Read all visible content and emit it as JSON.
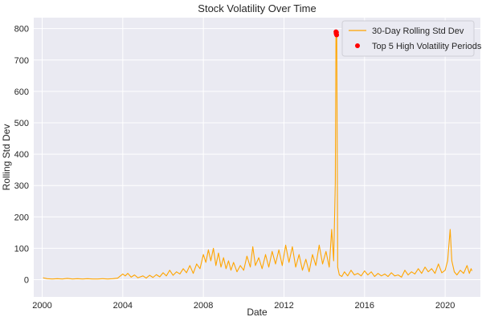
{
  "chart_data": {
    "type": "line",
    "title": "Stock Volatility Over Time",
    "xlabel": "Date",
    "ylabel": "Rolling Std Dev",
    "xlim": [
      "1999-08-01",
      "2021-10-01"
    ],
    "ylim": [
      -55,
      835
    ],
    "x_ticks": [
      {
        "date": "2000-01-01",
        "label": "2000"
      },
      {
        "date": "2004-01-01",
        "label": "2004"
      },
      {
        "date": "2008-01-01",
        "label": "2008"
      },
      {
        "date": "2012-01-01",
        "label": "2012"
      },
      {
        "date": "2016-01-01",
        "label": "2016"
      },
      {
        "date": "2020-01-01",
        "label": "2020"
      }
    ],
    "y_ticks": [
      0,
      100,
      200,
      300,
      400,
      500,
      600,
      700,
      800
    ],
    "grid": true,
    "legend_position": "top-right",
    "series": [
      {
        "name": "30-Day Rolling Std Dev",
        "kind": "line",
        "color": "#ffa500",
        "points": [
          [
            "2000-01-15",
            6
          ],
          [
            "2000-04-01",
            3
          ],
          [
            "2000-07-01",
            2
          ],
          [
            "2000-10-01",
            3
          ],
          [
            "2001-01-01",
            2
          ],
          [
            "2001-04-01",
            4
          ],
          [
            "2001-07-01",
            2
          ],
          [
            "2001-10-01",
            3
          ],
          [
            "2002-01-01",
            2
          ],
          [
            "2002-04-01",
            3
          ],
          [
            "2002-07-01",
            2
          ],
          [
            "2002-10-01",
            2
          ],
          [
            "2003-01-01",
            3
          ],
          [
            "2003-04-01",
            2
          ],
          [
            "2003-07-01",
            3
          ],
          [
            "2003-10-01",
            5
          ],
          [
            "2004-01-01",
            18
          ],
          [
            "2004-02-15",
            12
          ],
          [
            "2004-04-01",
            20
          ],
          [
            "2004-06-01",
            8
          ],
          [
            "2004-08-01",
            15
          ],
          [
            "2004-10-01",
            6
          ],
          [
            "2005-01-01",
            12
          ],
          [
            "2005-03-01",
            5
          ],
          [
            "2005-05-01",
            14
          ],
          [
            "2005-07-01",
            7
          ],
          [
            "2005-09-01",
            16
          ],
          [
            "2005-11-01",
            9
          ],
          [
            "2006-01-01",
            22
          ],
          [
            "2006-03-01",
            12
          ],
          [
            "2006-05-01",
            30
          ],
          [
            "2006-07-01",
            14
          ],
          [
            "2006-09-01",
            25
          ],
          [
            "2006-11-01",
            18
          ],
          [
            "2007-01-01",
            35
          ],
          [
            "2007-03-01",
            22
          ],
          [
            "2007-05-01",
            45
          ],
          [
            "2007-07-01",
            20
          ],
          [
            "2007-09-01",
            50
          ],
          [
            "2007-11-01",
            35
          ],
          [
            "2008-01-01",
            80
          ],
          [
            "2008-02-15",
            55
          ],
          [
            "2008-04-01",
            95
          ],
          [
            "2008-05-15",
            60
          ],
          [
            "2008-07-01",
            100
          ],
          [
            "2008-08-15",
            45
          ],
          [
            "2008-10-01",
            85
          ],
          [
            "2008-11-15",
            40
          ],
          [
            "2009-01-01",
            70
          ],
          [
            "2009-02-15",
            35
          ],
          [
            "2009-04-01",
            60
          ],
          [
            "2009-05-15",
            30
          ],
          [
            "2009-07-01",
            55
          ],
          [
            "2009-09-01",
            25
          ],
          [
            "2009-11-01",
            45
          ],
          [
            "2010-01-01",
            30
          ],
          [
            "2010-03-01",
            75
          ],
          [
            "2010-05-01",
            40
          ],
          [
            "2010-06-15",
            105
          ],
          [
            "2010-08-01",
            45
          ],
          [
            "2010-10-01",
            70
          ],
          [
            "2010-12-01",
            35
          ],
          [
            "2011-02-01",
            80
          ],
          [
            "2011-04-01",
            40
          ],
          [
            "2011-06-01",
            90
          ],
          [
            "2011-08-01",
            50
          ],
          [
            "2011-10-01",
            95
          ],
          [
            "2011-12-01",
            45
          ],
          [
            "2012-02-01",
            110
          ],
          [
            "2012-04-01",
            55
          ],
          [
            "2012-06-01",
            105
          ],
          [
            "2012-08-01",
            40
          ],
          [
            "2012-10-01",
            80
          ],
          [
            "2012-12-01",
            30
          ],
          [
            "2013-02-01",
            65
          ],
          [
            "2013-04-01",
            25
          ],
          [
            "2013-06-01",
            80
          ],
          [
            "2013-08-01",
            45
          ],
          [
            "2013-10-01",
            110
          ],
          [
            "2013-12-01",
            50
          ],
          [
            "2014-02-01",
            90
          ],
          [
            "2014-04-01",
            40
          ],
          [
            "2014-05-15",
            160
          ],
          [
            "2014-06-20",
            60
          ],
          [
            "2014-07-20",
            310
          ],
          [
            "2014-08-01",
            790
          ],
          [
            "2014-08-15",
            770
          ],
          [
            "2014-09-01",
            40
          ],
          [
            "2014-10-01",
            15
          ],
          [
            "2014-11-15",
            10
          ],
          [
            "2015-01-01",
            25
          ],
          [
            "2015-03-01",
            12
          ],
          [
            "2015-05-01",
            30
          ],
          [
            "2015-07-01",
            15
          ],
          [
            "2015-09-01",
            20
          ],
          [
            "2015-11-01",
            12
          ],
          [
            "2016-01-01",
            28
          ],
          [
            "2016-03-01",
            15
          ],
          [
            "2016-05-01",
            25
          ],
          [
            "2016-07-01",
            10
          ],
          [
            "2016-09-01",
            20
          ],
          [
            "2016-11-01",
            12
          ],
          [
            "2017-01-01",
            18
          ],
          [
            "2017-03-01",
            10
          ],
          [
            "2017-05-01",
            22
          ],
          [
            "2017-07-01",
            12
          ],
          [
            "2017-09-01",
            15
          ],
          [
            "2017-11-01",
            8
          ],
          [
            "2018-01-01",
            30
          ],
          [
            "2018-03-01",
            15
          ],
          [
            "2018-05-01",
            25
          ],
          [
            "2018-07-01",
            18
          ],
          [
            "2018-09-01",
            35
          ],
          [
            "2018-11-01",
            20
          ],
          [
            "2019-01-01",
            40
          ],
          [
            "2019-03-01",
            25
          ],
          [
            "2019-05-01",
            35
          ],
          [
            "2019-07-01",
            20
          ],
          [
            "2019-09-01",
            50
          ],
          [
            "2019-11-01",
            22
          ],
          [
            "2020-01-01",
            30
          ],
          [
            "2020-02-15",
            60
          ],
          [
            "2020-04-01",
            160
          ],
          [
            "2020-05-01",
            60
          ],
          [
            "2020-06-15",
            25
          ],
          [
            "2020-08-01",
            15
          ],
          [
            "2020-10-01",
            30
          ],
          [
            "2020-12-01",
            20
          ],
          [
            "2021-02-01",
            45
          ],
          [
            "2021-03-15",
            20
          ],
          [
            "2021-04-15",
            35
          ],
          [
            "2021-05-01",
            28
          ]
        ]
      },
      {
        "name": "Top 5 High Volatility Periods",
        "kind": "scatter",
        "color": "#ff0000",
        "points": [
          [
            "2014-08-01",
            790
          ],
          [
            "2014-08-04",
            786
          ],
          [
            "2014-08-07",
            783
          ],
          [
            "2014-08-10",
            788
          ],
          [
            "2014-08-13",
            780
          ]
        ]
      }
    ]
  }
}
